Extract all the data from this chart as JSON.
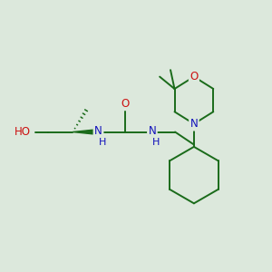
{
  "bg_color": "#dce8dc",
  "bond_color": "#1a6b1a",
  "N_color": "#1111bb",
  "O_color": "#cc1111",
  "figsize": [
    3.0,
    3.0
  ],
  "dpi": 100,
  "xlim": [
    0,
    10
  ],
  "ylim": [
    0,
    10
  ],
  "lw": 1.4
}
